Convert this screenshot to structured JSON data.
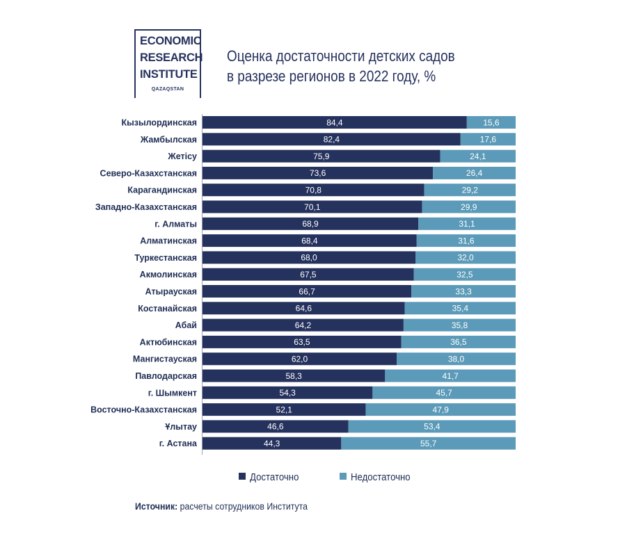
{
  "logo": {
    "line1": "ECONOMIC",
    "line2": "RESEARCH",
    "line3": "INSTITUTE",
    "sub": "QAZAQSTAN"
  },
  "header": {
    "title_line1": "Оценка достаточности детских садов",
    "title_line2": "в разрезе регионов в 2022 году, %"
  },
  "legend": {
    "series1": "Достаточно",
    "series2": "Недостаточно"
  },
  "source": {
    "label": "Источник:",
    "text": " расчеты сотрудников Института"
  },
  "colors": {
    "dark": "#26325e",
    "light": "#5b9ab8",
    "text": "#1e2d54"
  },
  "chart_data": {
    "type": "bar",
    "orientation": "horizontal",
    "stacked": true,
    "xlim": [
      0,
      100
    ],
    "title": "Оценка достаточности детских садов в разрезе регионов в 2022 году, %",
    "categories": [
      "Кызылординская",
      "Жамбылская",
      "Жетісу",
      "Северо-Казахстанская",
      "Карагандинская",
      "Западно-Казахстанская",
      "г. Алматы",
      "Алматинская",
      "Туркестанская",
      "Акмолинская",
      "Атырауская",
      "Костанайская",
      "Абай",
      "Актюбинская",
      "Мангистауская",
      "Павлодарская",
      "г. Шымкент",
      "Восточно-Казахстанская",
      "Ұлытау",
      "г. Астана"
    ],
    "series": [
      {
        "name": "Достаточно",
        "values": [
          84.4,
          82.4,
          75.9,
          73.6,
          70.8,
          70.1,
          68.9,
          68.4,
          68.0,
          67.5,
          66.7,
          64.6,
          64.2,
          63.5,
          62.0,
          58.3,
          54.3,
          52.1,
          46.6,
          44.3
        ],
        "labels": [
          "84,4",
          "82,4",
          "75,9",
          "73,6",
          "70,8",
          "70,1",
          "68,9",
          "68,4",
          "68,0",
          "67,5",
          "66,7",
          "64,6",
          "64,2",
          "63,5",
          "62,0",
          "58,3",
          "54,3",
          "52,1",
          "46,6",
          "44,3"
        ]
      },
      {
        "name": "Недостаточно",
        "values": [
          15.6,
          17.6,
          24.1,
          26.4,
          29.2,
          29.9,
          31.1,
          31.6,
          32.0,
          32.5,
          33.3,
          35.4,
          35.8,
          36.5,
          38.0,
          41.7,
          45.7,
          47.9,
          53.4,
          55.7
        ],
        "labels": [
          "15,6",
          "17,6",
          "24,1",
          "26,4",
          "29,2",
          "29,9",
          "31,1",
          "31,6",
          "32,0",
          "32,5",
          "33,3",
          "35,4",
          "35,8",
          "36,5",
          "38,0",
          "41,7",
          "45,7",
          "47,9",
          "53,4",
          "55,7"
        ]
      }
    ],
    "legend": "bottom"
  }
}
